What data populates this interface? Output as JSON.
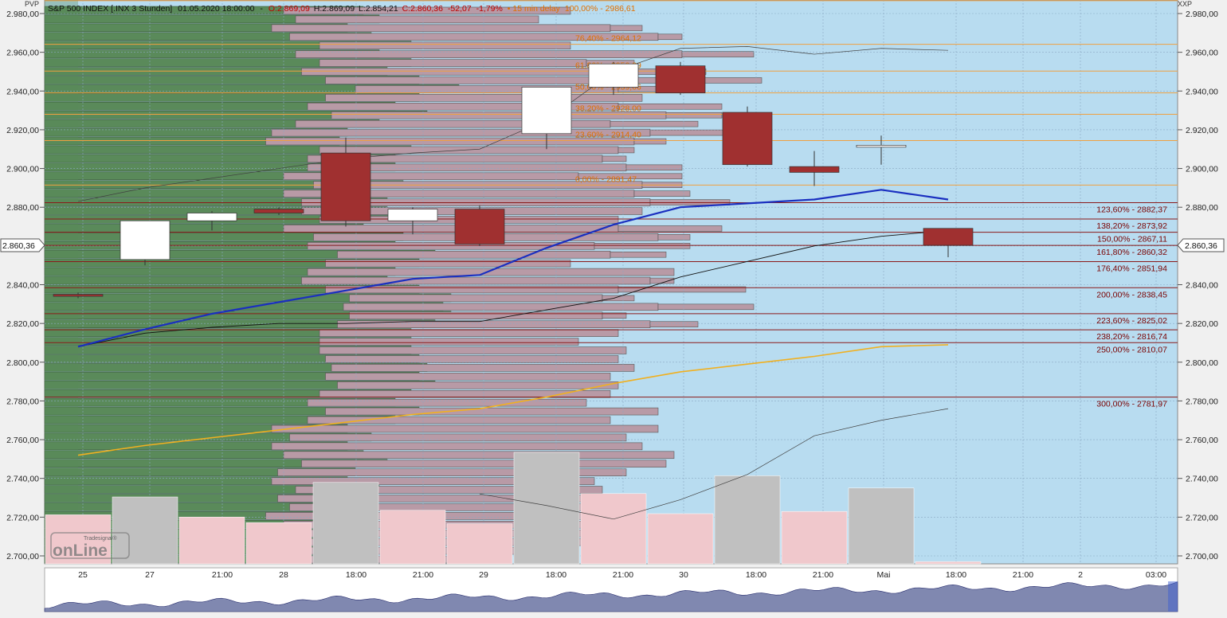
{
  "header": {
    "left_corner": "PVP",
    "right_corner": "XXP",
    "symbol": "S&P 500 INDEX [.INX 3 Stunden]",
    "datetime": "01.05.2020 18:00:00",
    "open": "O:2.869,09",
    "high": "H:2.869,09",
    "low": "L:2.854,21",
    "close": "C:2.860,36",
    "change": "-52,07",
    "change_pct": "-1,79%",
    "delay": "• 15 min delay",
    "top_fib": "100,00% - 2986,61"
  },
  "price_tag": "2.860,36",
  "logo": {
    "small": "Tradesignal®",
    "big": "onLine"
  },
  "colors": {
    "plot_bg": "#b8dcf0",
    "volume_profile_green": "#5a8a5a",
    "volume_profile_mauve": "#b89aa6",
    "bear_candle": "#a03030",
    "bull_candle": "#ffffff",
    "ma_blue": "#1a2fc0",
    "ma_yellow": "#f0b020",
    "fib_orange": "#f0a040",
    "fib_red": "#8b1a1a",
    "volume_pink": "#f0c8cc",
    "volume_grey": "#c0c0c0",
    "overview_fill": "#8088b0"
  },
  "chart_data": {
    "type": "candlestick",
    "y_ticks": [
      {
        "v": 2700,
        "label": "2.700,00"
      },
      {
        "v": 2720,
        "label": "2.720,00"
      },
      {
        "v": 2740,
        "label": "2.740,00"
      },
      {
        "v": 2760,
        "label": "2.760,00"
      },
      {
        "v": 2780,
        "label": "2.780,00"
      },
      {
        "v": 2800,
        "label": "2.800,00"
      },
      {
        "v": 2820,
        "label": "2.820,00"
      },
      {
        "v": 2840,
        "label": "2.840,00"
      },
      {
        "v": 2860,
        "label": "2.860,00"
      },
      {
        "v": 2880,
        "label": "2.880,00"
      },
      {
        "v": 2900,
        "label": "2.900,00"
      },
      {
        "v": 2920,
        "label": "2.920,00"
      },
      {
        "v": 2940,
        "label": "2.940,00"
      },
      {
        "v": 2960,
        "label": "2.960,00"
      },
      {
        "v": 2980,
        "label": "2.980,00"
      }
    ],
    "ylim": [
      2696,
      2994
    ],
    "x_ticks": [
      "25",
      "27",
      "21:00",
      "28",
      "18:00",
      "21:00",
      "29",
      "18:00",
      "21:00",
      "30",
      "18:00",
      "21:00",
      "Mai",
      "18:00",
      "21:00",
      "2",
      "03:00"
    ],
    "current_price": 2860.36,
    "candles": [
      {
        "o": 2835,
        "h": 2836,
        "l": 2833,
        "c": 2834
      },
      {
        "o": 2853,
        "h": 2873,
        "l": 2850,
        "c": 2873
      },
      {
        "o": 2873,
        "h": 2878,
        "l": 2868,
        "c": 2877
      },
      {
        "o": 2879,
        "h": 2880,
        "l": 2876,
        "c": 2877
      },
      {
        "o": 2908,
        "h": 2916,
        "l": 2870,
        "c": 2873
      },
      {
        "o": 2873,
        "h": 2880,
        "l": 2866,
        "c": 2879
      },
      {
        "o": 2879,
        "h": 2881,
        "l": 2860,
        "c": 2861
      },
      {
        "o": 2918,
        "h": 2942,
        "l": 2910,
        "c": 2942
      },
      {
        "o": 2942,
        "h": 2955,
        "l": 2938,
        "c": 2954
      },
      {
        "o": 2953,
        "h": 2955,
        "l": 2938,
        "c": 2939
      },
      {
        "o": 2929,
        "h": 2932,
        "l": 2901,
        "c": 2902
      },
      {
        "o": 2901,
        "h": 2909,
        "l": 2891,
        "c": 2898
      },
      {
        "o": 2911,
        "h": 2917,
        "l": 2902,
        "c": 2912
      },
      {
        "o": 2869.09,
        "h": 2869.09,
        "l": 2854.21,
        "c": 2860.36
      }
    ],
    "ma_blue": [
      2808,
      2817,
      2825,
      2831,
      2837,
      2843,
      2845,
      2859,
      2871,
      2880,
      2882,
      2884,
      2889,
      2884
    ],
    "ma_yellow": [
      2752,
      2757,
      2761,
      2765,
      2769,
      2773,
      2776,
      2782,
      2789,
      2795,
      2799,
      2803,
      2808,
      2809
    ],
    "line_black": [
      2808,
      2815,
      2818,
      2820,
      2820,
      2821,
      2821,
      2827,
      2833,
      2844,
      2852,
      2860,
      2865,
      2868
    ],
    "line_thin": [
      2883,
      2890,
      2895,
      2900,
      2905,
      2908,
      2910,
      2925,
      2950,
      2962,
      2963,
      2959,
      2962,
      2961
    ],
    "line_lower": [
      null,
      null,
      null,
      null,
      null,
      null,
      2732,
      2726,
      2719,
      2729,
      2742,
      2762,
      2770,
      2776
    ],
    "volume": [
      0.44,
      0.6,
      0.42,
      0.37,
      0.73,
      0.48,
      0.36,
      1.0,
      0.63,
      0.45,
      0.79,
      0.47,
      0.68,
      0.02
    ],
    "fib_upper": [
      {
        "label": "100,00% - 2986,61",
        "v": 2986.61
      },
      {
        "label": "76,40% - 2964,12",
        "v": 2964.12
      },
      {
        "label": "61,80% - 2950,29",
        "v": 2950.29
      },
      {
        "label": "50,00% - 2939,06",
        "v": 2939.06
      },
      {
        "label": "38,20% - 2928,00",
        "v": 2928.0
      },
      {
        "label": "23,60% - 2914,40",
        "v": 2914.4
      },
      {
        "label": "0,00% - 2891,47",
        "v": 2891.47
      }
    ],
    "fib_lower": [
      {
        "label": "123,60% - 2882,37",
        "v": 2882.37
      },
      {
        "label": "138,20% - 2873,92",
        "v": 2873.92
      },
      {
        "label": "150,00% - 2867,11",
        "v": 2867.11
      },
      {
        "label": "161,80% - 2860,32",
        "v": 2860.32
      },
      {
        "label": "176,40% - 2851,94",
        "v": 2851.94
      },
      {
        "label": "200,00% - 2838,45",
        "v": 2838.45
      },
      {
        "label": "223,60% - 2825,02",
        "v": 2825.02
      },
      {
        "label": "238,20% - 2816,74",
        "v": 2816.74
      },
      {
        "label": "250,00% - 2810,07",
        "v": 2810.07
      },
      {
        "label": "300,00% - 2781,97",
        "v": 2781.97
      }
    ],
    "volume_profile": [
      [
        0.0,
        0.4,
        0.66,
        0.54
      ],
      [
        0.0,
        0.42,
        0.62,
        0.61
      ],
      [
        0.0,
        0.38,
        0.71,
        0.75
      ],
      [
        0.0,
        0.41,
        0.77,
        0.8
      ],
      [
        0.0,
        0.46,
        0.66,
        0.66
      ],
      [
        0.0,
        0.42,
        0.8,
        0.89
      ],
      [
        0.0,
        0.46,
        0.68,
        0.74
      ],
      [
        0.0,
        0.43,
        0.69,
        0.83
      ],
      [
        0.0,
        0.47,
        0.7,
        0.9
      ],
      [
        0.0,
        0.52,
        0.72,
        0.78
      ],
      [
        0.0,
        0.47,
        0.75,
        0.75
      ],
      [
        0.0,
        0.44,
        0.72,
        0.85
      ],
      [
        0.0,
        0.48,
        0.78,
        0.85
      ],
      [
        0.0,
        0.42,
        0.71,
        0.82
      ],
      [
        0.0,
        0.38,
        0.76,
        0.89
      ],
      [
        0.0,
        0.37,
        0.74,
        0.78
      ],
      [
        0.0,
        0.46,
        0.72,
        0.74
      ],
      [
        0.0,
        0.44,
        0.7,
        0.73
      ],
      [
        0.0,
        0.44,
        0.73,
        0.8
      ],
      [
        0.0,
        0.4,
        0.67,
        0.8
      ],
      [
        0.0,
        0.45,
        0.75,
        0.8
      ],
      [
        0.0,
        0.4,
        0.74,
        0.81
      ],
      [
        0.0,
        0.43,
        0.76,
        0.86
      ],
      [
        0.0,
        0.43,
        0.75,
        0.75
      ],
      [
        0.0,
        0.46,
        0.72,
        0.72
      ],
      [
        0.0,
        0.4,
        0.72,
        0.85
      ],
      [
        0.0,
        0.45,
        0.77,
        0.81
      ],
      [
        0.0,
        0.44,
        0.69,
        0.81
      ],
      [
        0.0,
        0.49,
        0.71,
        0.78
      ],
      [
        0.0,
        0.47,
        0.66,
        0.66
      ],
      [
        0.0,
        0.44,
        0.79,
        0.79
      ],
      [
        0.0,
        0.43,
        0.76,
        0.79
      ],
      [
        0.0,
        0.47,
        0.72,
        0.88
      ],
      [
        0.0,
        0.51,
        0.7,
        0.74
      ],
      [
        0.0,
        0.5,
        0.77,
        0.89
      ],
      [
        0.0,
        0.51,
        0.7,
        0.73
      ],
      [
        0.0,
        0.49,
        0.76,
        0.82
      ],
      [
        0.0,
        0.46,
        0.72,
        0.72
      ],
      [
        0.0,
        0.46,
        0.67,
        0.67
      ],
      [
        0.0,
        0.46,
        0.73,
        0.73
      ],
      [
        0.0,
        0.47,
        0.72,
        0.72
      ],
      [
        0.0,
        0.48,
        0.74,
        0.74
      ],
      [
        0.0,
        0.47,
        0.71,
        0.71
      ],
      [
        0.0,
        0.49,
        0.72,
        0.72
      ],
      [
        0.0,
        0.46,
        0.71,
        0.71
      ],
      [
        0.0,
        0.44,
        0.68,
        0.68
      ],
      [
        0.0,
        0.47,
        0.77,
        0.77
      ],
      [
        0.0,
        0.44,
        0.71,
        0.71
      ],
      [
        0.0,
        0.38,
        0.77,
        0.77
      ],
      [
        0.0,
        0.41,
        0.73,
        0.73
      ],
      [
        0.0,
        0.38,
        0.75,
        0.75
      ],
      [
        0.0,
        0.4,
        0.79,
        0.79
      ],
      [
        0.0,
        0.43,
        0.78,
        0.78
      ],
      [
        0.0,
        0.39,
        0.73,
        0.73
      ],
      [
        0.0,
        0.38,
        0.69,
        0.69
      ],
      [
        0.0,
        0.42,
        0.7,
        0.7
      ],
      [
        0.0,
        0.39,
        0.68,
        0.68
      ],
      [
        0.0,
        0.41,
        0.75,
        0.75
      ],
      [
        0.0,
        0.37,
        0.7,
        0.7
      ],
      [
        0.0,
        0.4,
        0.73,
        0.73
      ],
      [
        0.0,
        0.38,
        0.73,
        0.73
      ],
      [
        0.0,
        0.4,
        0.72,
        0.72
      ],
      [
        0.0,
        0.36,
        0.62,
        0.62
      ],
      [
        0.0,
        0.39,
        0.57,
        0.57
      ]
    ]
  }
}
